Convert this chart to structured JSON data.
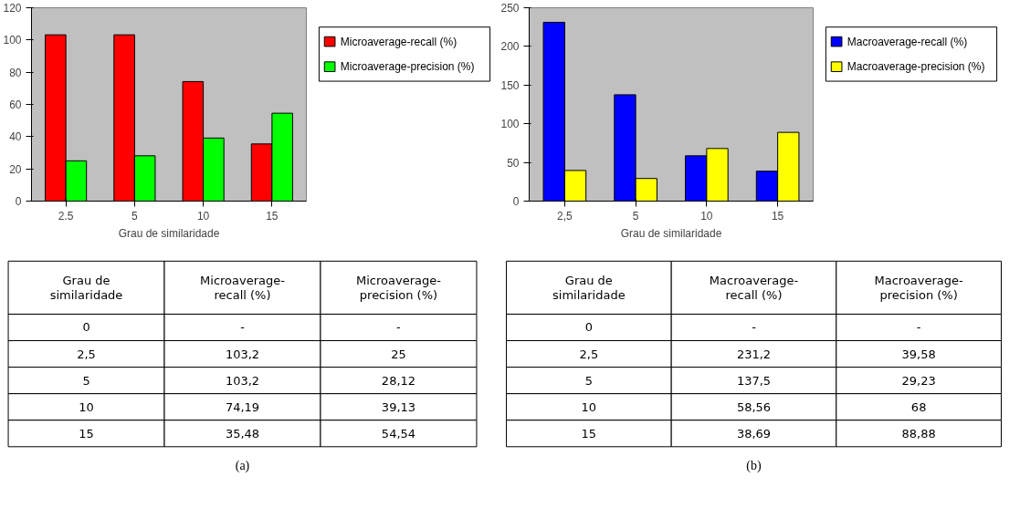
{
  "chart_data": [
    {
      "type": "bar",
      "xlabel": "Grau de similaridade",
      "categories": [
        "2.5",
        "5",
        "10",
        "15"
      ],
      "ylim": [
        0,
        120
      ],
      "yticks": [
        0,
        20,
        40,
        60,
        80,
        100,
        120
      ],
      "legend": "right",
      "series": [
        {
          "name": "Microaverage-recall (%)",
          "color": "#ff0000",
          "values": [
            103.2,
            103.2,
            74.19,
            35.48
          ]
        },
        {
          "name": "Microaverage-precision (%)",
          "color": "#00ff00",
          "values": [
            25,
            28.12,
            39.13,
            54.54
          ]
        }
      ]
    },
    {
      "type": "bar",
      "xlabel": "Grau de similaridade",
      "categories": [
        "2,5",
        "5",
        "10",
        "15"
      ],
      "ylim": [
        0,
        250
      ],
      "yticks": [
        0,
        50,
        100,
        150,
        200,
        250
      ],
      "legend": "right",
      "series": [
        {
          "name": "Macroaverage-recall (%)",
          "color": "#0000ff",
          "values": [
            231.2,
            137.5,
            58.56,
            38.69
          ]
        },
        {
          "name": "Macroaverage-precision (%)",
          "color": "#ffff00",
          "values": [
            39.58,
            29.23,
            68,
            88.88
          ]
        }
      ]
    },
    {
      "type": "other",
      "annotations": [
        "Grau de similaridade",
        "Microaverage-recall (%)",
        "Microaverage-precision (%)",
        "0",
        "-",
        "-",
        "2,5",
        "103,2",
        "25",
        "5",
        "103,2",
        "28,12",
        "10",
        "74,19",
        "39,13",
        "15",
        "35,48",
        "54,54",
        "(a)"
      ]
    },
    {
      "type": "other",
      "annotations": [
        "Grau de similaridade",
        "Macroaverage-recall (%)",
        "Macroaverage-precision (%)",
        "0",
        "-",
        "-",
        "2,5",
        "231,2",
        "39,58",
        "5",
        "137,5",
        "29,23",
        "10",
        "58,56",
        "68",
        "15",
        "38,69",
        "88,88",
        "(b)"
      ]
    }
  ]
}
